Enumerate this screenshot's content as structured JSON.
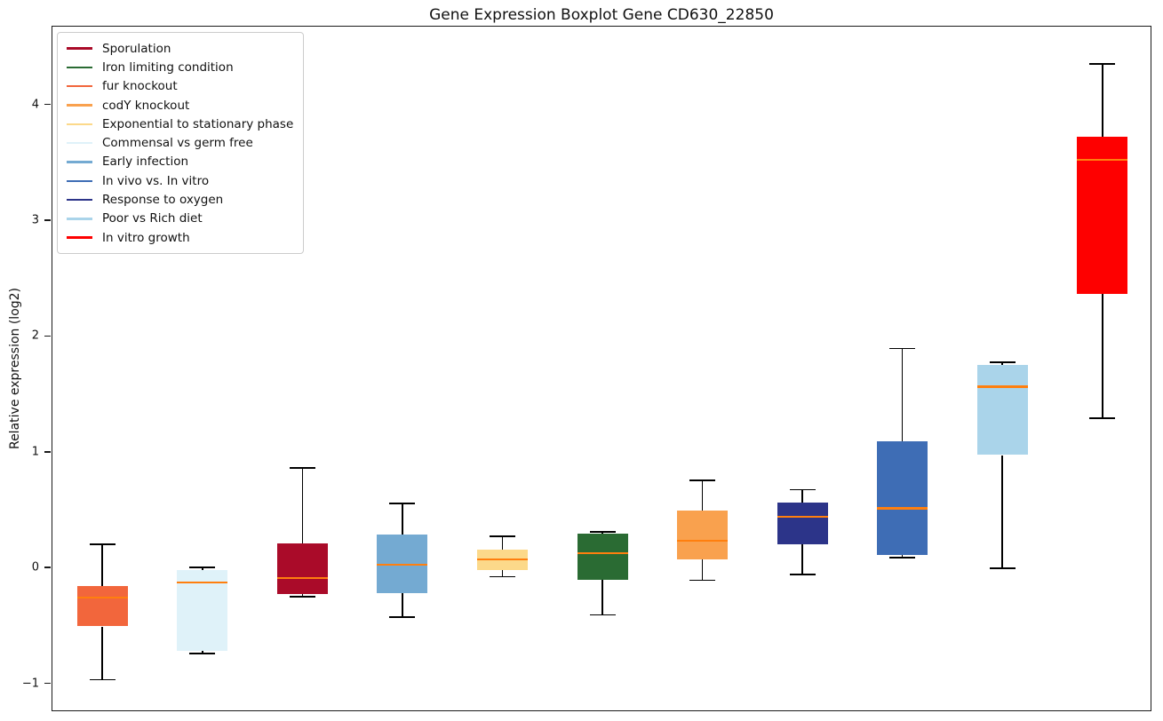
{
  "chart_data": {
    "type": "box",
    "title": "Gene Expression Boxplot Gene CD630_22850",
    "xlabel": "",
    "ylabel": "Relative expression (log2)",
    "ylim": [
      -1.24,
      4.68
    ],
    "yticks": [
      -1,
      0,
      1,
      2,
      3,
      4
    ],
    "grid": false,
    "legend_position": "upper left",
    "median_color": "#ff7f0e",
    "whisker_color": "#000000",
    "legend_order": [
      "Sporulation",
      "Iron limiting condition",
      "fur knockout",
      "codY knockout",
      "Exponential to stationary phase",
      "Commensal vs germ free",
      "Early infection",
      "In vivo vs. In vitro",
      "Response to oxygen",
      "Poor vs Rich diet",
      "In vitro growth"
    ],
    "series": [
      {
        "label": "fur knockout",
        "color": "#f2663c",
        "whislo": -0.96,
        "q1": -0.5,
        "med": -0.25,
        "q3": -0.15,
        "whishi": 0.21
      },
      {
        "label": "Commensal vs germ free",
        "color": "#dff2f9",
        "whislo": -0.735,
        "q1": -0.71,
        "med": -0.12,
        "q3": -0.01,
        "whishi": 0.01
      },
      {
        "label": "Sporulation",
        "color": "#aa0b29",
        "whislo": -0.245,
        "q1": -0.22,
        "med": -0.08,
        "q3": 0.22,
        "whishi": 0.87
      },
      {
        "label": "Early infection",
        "color": "#74aad2",
        "whislo": -0.42,
        "q1": -0.21,
        "med": 0.03,
        "q3": 0.29,
        "whishi": 0.56
      },
      {
        "label": "Exponential to stationary phase",
        "color": "#fcd98a",
        "whislo": -0.07,
        "q1": -0.01,
        "med": 0.08,
        "q3": 0.16,
        "whishi": 0.28
      },
      {
        "label": "Iron limiting condition",
        "color": "#2a6b33",
        "whislo": -0.4,
        "q1": -0.1,
        "med": 0.13,
        "q3": 0.3,
        "whishi": 0.315
      },
      {
        "label": "codY knockout",
        "color": "#f9a14e",
        "whislo": -0.1,
        "q1": 0.08,
        "med": 0.24,
        "q3": 0.5,
        "whishi": 0.76
      },
      {
        "label": "Response to oxygen",
        "color": "#2c3489",
        "whislo": -0.05,
        "q1": 0.21,
        "med": 0.45,
        "q3": 0.57,
        "whishi": 0.68
      },
      {
        "label": "In vivo vs. In vitro",
        "color": "#3e6db5",
        "whislo": 0.095,
        "q1": 0.12,
        "med": 0.52,
        "q3": 1.1,
        "whishi": 1.9
      },
      {
        "label": "Poor vs Rich diet",
        "color": "#aad4ea",
        "whislo": 0.0,
        "q1": 0.98,
        "med": 1.57,
        "q3": 1.76,
        "whishi": 1.78
      },
      {
        "label": "In vitro growth",
        "color": "#fe0000",
        "whislo": 1.3,
        "q1": 2.37,
        "med": 3.53,
        "q3": 3.73,
        "whishi": 4.36
      }
    ]
  }
}
